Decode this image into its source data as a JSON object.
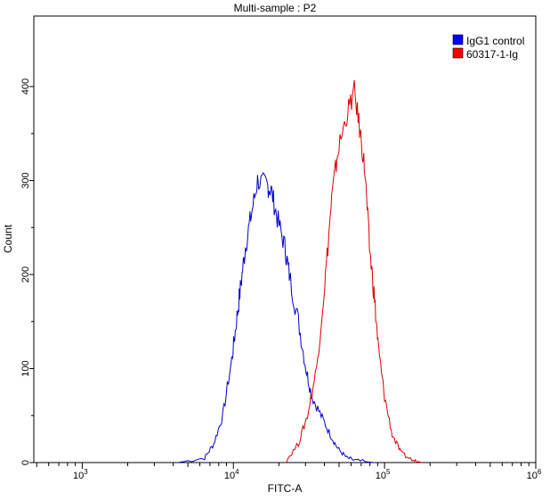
{
  "chart_data": {
    "type": "line",
    "title": "Multi-sample : P2",
    "xlabel": "FITC-A",
    "ylabel": "Count",
    "xscale": "log",
    "xlim_log10": [
      2.68,
      6
    ],
    "ylim": [
      0,
      475
    ],
    "x_ticks": [
      {
        "base": "10",
        "exp": "3",
        "value": 3
      },
      {
        "base": "10",
        "exp": "4",
        "value": 4
      },
      {
        "base": "10",
        "exp": "5",
        "value": 5
      },
      {
        "base": "10",
        "exp": "6",
        "value": 6
      }
    ],
    "y_ticks": [
      "0",
      "100",
      "200",
      "300",
      "400"
    ],
    "legend_position": "top-right",
    "series": [
      {
        "name": "IgG1 control",
        "color": "#0000cc",
        "swatch": "#0000ff",
        "x_log10": [
          3.635,
          3.81,
          3.87,
          3.93,
          3.99,
          4.02,
          4.05,
          4.08,
          4.12,
          4.16,
          4.22,
          4.25,
          4.29,
          4.34,
          4.37,
          4.43,
          4.48,
          4.52,
          4.58,
          4.64,
          4.69,
          4.75,
          4.81,
          4.93
        ],
        "counts": [
          0,
          5,
          20,
          50,
          110,
          150,
          190,
          230,
          265,
          300,
          295,
          290,
          260,
          230,
          200,
          150,
          100,
          70,
          50,
          30,
          15,
          5,
          2,
          0
        ]
      },
      {
        "name": "60317-1-Ig",
        "color": "#dd0000",
        "swatch": "#ff0000",
        "x_log10": [
          4.34,
          4.43,
          4.49,
          4.55,
          4.61,
          4.65,
          4.69,
          4.75,
          4.8,
          4.84,
          4.87,
          4.9,
          4.93,
          4.96,
          5.0,
          5.05,
          5.11,
          5.19,
          5.25
        ],
        "counts": [
          0,
          20,
          50,
          100,
          200,
          280,
          330,
          370,
          395,
          350,
          310,
          230,
          180,
          120,
          70,
          30,
          10,
          2,
          0
        ]
      }
    ]
  }
}
